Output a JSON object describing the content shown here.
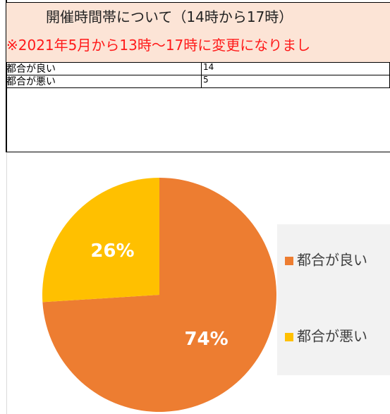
{
  "header": {
    "title": "開催時間帯について（14時から17時）",
    "note": "※2021年5月から13時～17時に変更になりまし"
  },
  "table": {
    "rows": [
      [
        "都合が良い",
        "14"
      ],
      [
        "都合が悪い",
        "5"
      ]
    ]
  },
  "chart_data": {
    "type": "pie",
    "categories": [
      "都合が良い",
      "都合が悪い"
    ],
    "values": [
      74,
      26
    ],
    "value_labels": [
      "74%",
      "26%"
    ],
    "colors": [
      "#ed7d31",
      "#ffc000"
    ],
    "legend": "right"
  }
}
